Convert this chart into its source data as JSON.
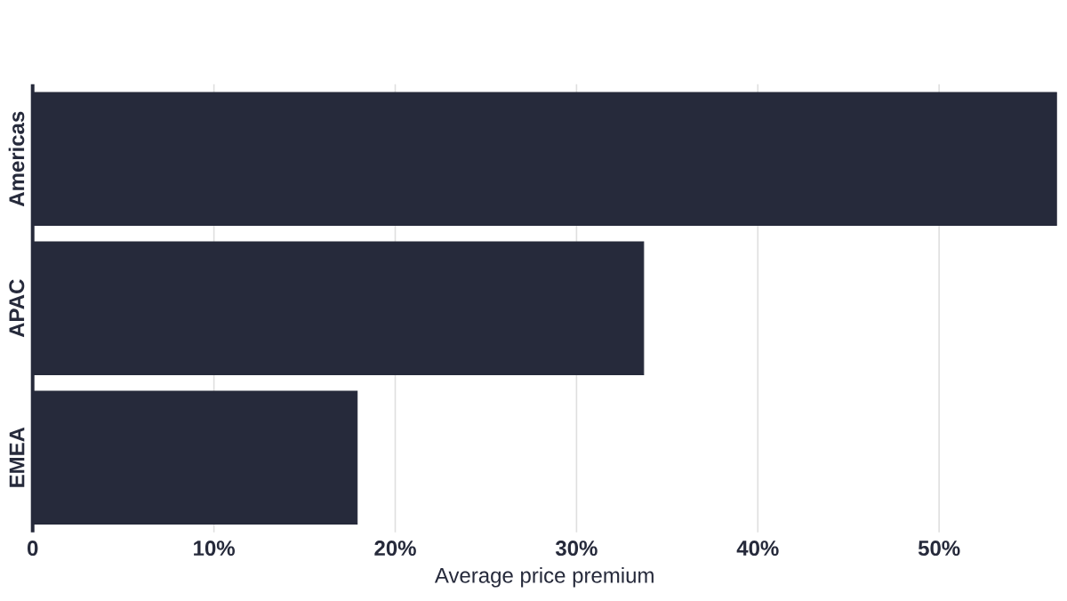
{
  "chart_data": {
    "type": "bar",
    "orientation": "horizontal",
    "xlabel": "Average price premium",
    "categories": [
      "Americas",
      "APAC",
      "EMEA"
    ],
    "values": [
      56.5,
      33.7,
      17.9
    ],
    "color": "#262a3b",
    "xlim": [
      0,
      56.5
    ],
    "xticks": [
      {
        "value": 0,
        "label": "0"
      },
      {
        "value": 10,
        "label": "10%"
      },
      {
        "value": 20,
        "label": "20%"
      },
      {
        "value": 30,
        "label": "30%"
      },
      {
        "value": 40,
        "label": "40%"
      },
      {
        "value": 50,
        "label": "50%"
      }
    ],
    "grid": "x"
  }
}
